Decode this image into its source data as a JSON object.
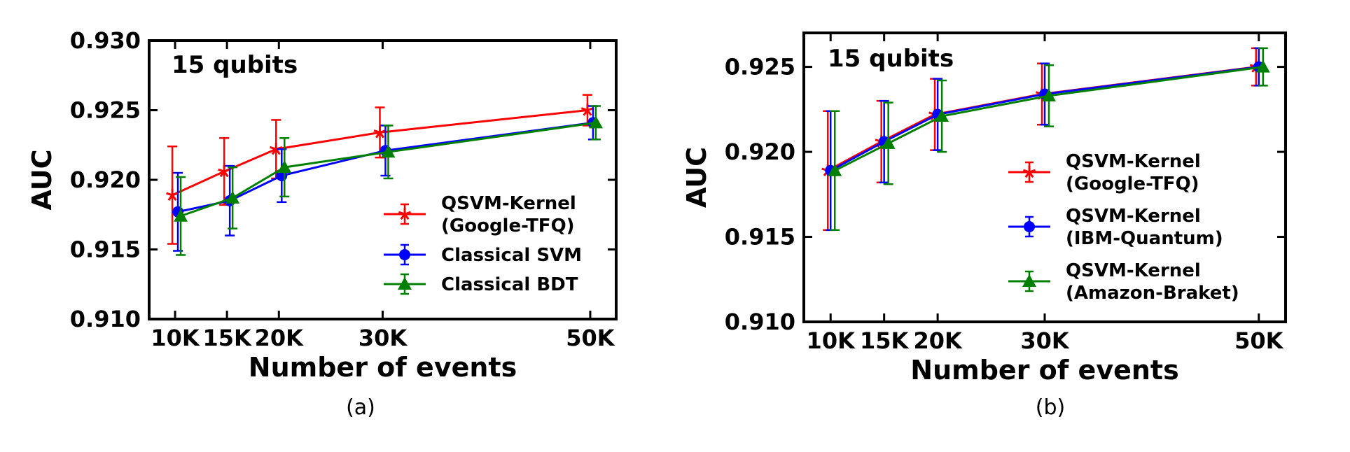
{
  "chart_data": [
    {
      "type": "line",
      "panel_label": "(a)",
      "annotation": "15 qubits",
      "xlabel": "Number of events",
      "ylabel": "AUC",
      "x": [
        10000,
        15000,
        20000,
        30000,
        50000
      ],
      "x_tick_labels": [
        "10K",
        "15K",
        "20K",
        "30K",
        "50K"
      ],
      "y_ticks": [
        0.91,
        0.915,
        0.92,
        0.925,
        0.93
      ],
      "y_tick_labels": [
        "0.910",
        "0.915",
        "0.920",
        "0.925",
        "0.930"
      ],
      "ylim": [
        0.91,
        0.93
      ],
      "xlim": [
        7500,
        52500
      ],
      "legend_position": "lower-right",
      "series": [
        {
          "name": "QSVM-Kernel (Google-TFQ)",
          "legend_lines": [
            "QSVM-Kernel",
            "(Google-TFQ)"
          ],
          "color": "#ff0000",
          "marker": "star",
          "values": [
            0.9189,
            0.9206,
            0.9222,
            0.9234,
            0.925
          ],
          "errors": [
            0.0035,
            0.0024,
            0.0021,
            0.0018,
            0.0011
          ]
        },
        {
          "name": "Classical SVM",
          "legend_lines": [
            "Classical SVM"
          ],
          "color": "#0000ff",
          "marker": "circle",
          "values": [
            0.9177,
            0.9185,
            0.9203,
            0.9221,
            0.9241
          ],
          "errors": [
            0.0028,
            0.0025,
            0.0019,
            0.0018,
            0.0012
          ]
        },
        {
          "name": "Classical BDT",
          "legend_lines": [
            "Classical BDT"
          ],
          "color": "#008000",
          "marker": "triangle",
          "values": [
            0.9174,
            0.9187,
            0.9209,
            0.922,
            0.9241
          ],
          "errors": [
            0.0028,
            0.0022,
            0.0021,
            0.0019,
            0.0012
          ]
        }
      ]
    },
    {
      "type": "line",
      "panel_label": "(b)",
      "annotation": "15 qubits",
      "xlabel": "Number of events",
      "ylabel": "AUC",
      "x": [
        10000,
        15000,
        20000,
        30000,
        50000
      ],
      "x_tick_labels": [
        "10K",
        "15K",
        "20K",
        "30K",
        "50K"
      ],
      "y_ticks": [
        0.91,
        0.915,
        0.92,
        0.925
      ],
      "y_tick_labels": [
        "0.910",
        "0.915",
        "0.920",
        "0.925"
      ],
      "ylim": [
        0.91,
        0.927
      ],
      "xlim": [
        7500,
        52500
      ],
      "legend_position": "lower-right",
      "series": [
        {
          "name": "QSVM-Kernel (Google-TFQ)",
          "legend_lines": [
            "QSVM-Kernel",
            "(Google-TFQ)"
          ],
          "color": "#ff0000",
          "marker": "star",
          "values": [
            0.9189,
            0.9206,
            0.9222,
            0.9234,
            0.925
          ],
          "errors": [
            0.0035,
            0.0024,
            0.0021,
            0.0018,
            0.0011
          ]
        },
        {
          "name": "QSVM-Kernel (IBM-Quantum)",
          "legend_lines": [
            "QSVM-Kernel",
            "(IBM-Quantum)"
          ],
          "color": "#0000ff",
          "marker": "circle",
          "values": [
            0.9189,
            0.9206,
            0.9222,
            0.9234,
            0.925
          ],
          "errors": [
            0.0035,
            0.0024,
            0.0021,
            0.0018,
            0.0011
          ]
        },
        {
          "name": "QSVM-Kernel (Amazon-Braket)",
          "legend_lines": [
            "QSVM-Kernel",
            "(Amazon-Braket)"
          ],
          "color": "#008000",
          "marker": "triangle",
          "values": [
            0.9189,
            0.9205,
            0.9221,
            0.9233,
            0.925
          ],
          "errors": [
            0.0035,
            0.0024,
            0.0021,
            0.0018,
            0.0011
          ]
        }
      ]
    }
  ]
}
